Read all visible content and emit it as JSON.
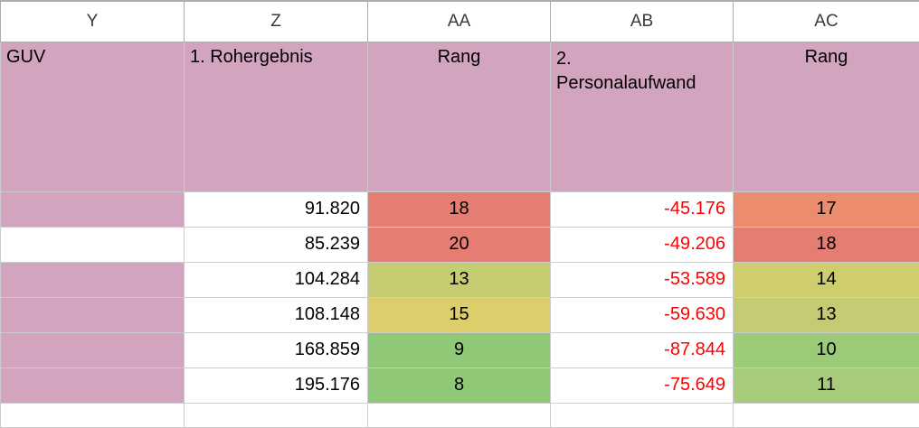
{
  "sheet": {
    "column_headers": [
      "Y",
      "Z",
      "AA",
      "AB",
      "AC"
    ],
    "header_row": {
      "guv": "GUV",
      "rohergebnis": "1. Rohergebnis",
      "rang_a": "Rang",
      "personalaufwand": "2.\nPersonalaufwand",
      "rang_c": "Rang"
    },
    "rows": [
      {
        "y_fill": "#D3A4BF",
        "rohergebnis": "91.820",
        "rang_a": "18",
        "rang_a_fill": "#E57D72",
        "personalaufwand": "-45.176",
        "rang_c": "17",
        "rang_c_fill": "#EC8C6E"
      },
      {
        "y_fill": "#FFFFFF",
        "rohergebnis": "85.239",
        "rang_a": "20",
        "rang_a_fill": "#E57D72",
        "personalaufwand": "-49.206",
        "rang_c": "18",
        "rang_c_fill": "#E57D72"
      },
      {
        "y_fill": "#D3A4BF",
        "rohergebnis": "104.284",
        "rang_a": "13",
        "rang_a_fill": "#C5CC71",
        "personalaufwand": "-53.589",
        "rang_c": "14",
        "rang_c_fill": "#CFCE6F"
      },
      {
        "y_fill": "#D3A4BF",
        "rohergebnis": "108.148",
        "rang_a": "15",
        "rang_a_fill": "#DCCF6B",
        "personalaufwand": "-59.630",
        "rang_c": "13",
        "rang_c_fill": "#C4CB72"
      },
      {
        "y_fill": "#D3A4BF",
        "rohergebnis": "168.859",
        "rang_a": "9",
        "rang_a_fill": "#8FC877",
        "personalaufwand": "-87.844",
        "rang_c": "10",
        "rang_c_fill": "#9BCA79"
      },
      {
        "y_fill": "#D3A4BF",
        "rohergebnis": "195.176",
        "rang_a": "8",
        "rang_a_fill": "#8FC877",
        "personalaufwand": "-75.649",
        "rang_c": "11",
        "rang_c_fill": "#A8CB7B"
      }
    ],
    "colors": {
      "header_fill": "#D3A4BF",
      "negative_text": "#FE0000",
      "gridline": "#CCCCCC",
      "frame_border": "#ADADAD"
    }
  }
}
